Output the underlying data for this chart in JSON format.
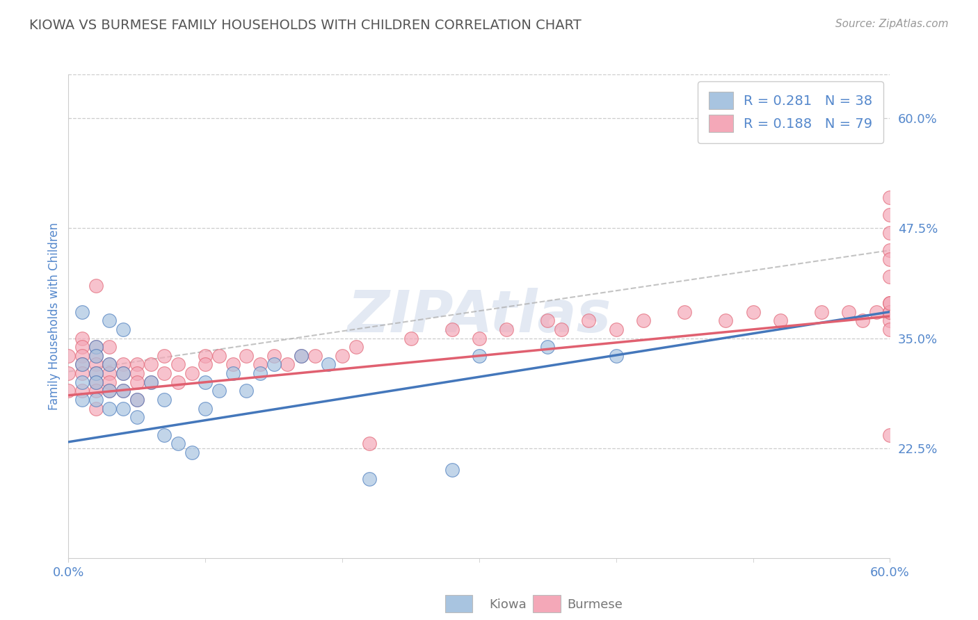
{
  "title": "KIOWA VS BURMESE FAMILY HOUSEHOLDS WITH CHILDREN CORRELATION CHART",
  "source": "Source: ZipAtlas.com",
  "ylabel": "Family Households with Children",
  "x_legend_kiowa": "Kiowa",
  "x_legend_burmese": "Burmese",
  "kiowa_R": 0.281,
  "kiowa_N": 38,
  "burmese_R": 0.188,
  "burmese_N": 79,
  "xlim": [
    0.0,
    0.6
  ],
  "ylim": [
    0.1,
    0.65
  ],
  "yticks": [
    0.225,
    0.35,
    0.475,
    0.6
  ],
  "ytick_labels": [
    "22.5%",
    "35.0%",
    "47.5%",
    "60.0%"
  ],
  "xtick_labels": [
    "0.0%",
    "60.0%"
  ],
  "grid_color": "#cccccc",
  "background_color": "#ffffff",
  "kiowa_color": "#a8c4e0",
  "burmese_color": "#f4a8b8",
  "kiowa_line_color": "#4477bb",
  "burmese_line_color": "#e06070",
  "title_color": "#555555",
  "axis_label_color": "#5588cc",
  "tick_label_color": "#5588cc",
  "watermark_color": "#dce4f0",
  "legend_text_color": "#5588cc",
  "source_color": "#999999",
  "bottom_legend_color": "#777777",
  "kiowa_scatter_x": [
    0.01,
    0.01,
    0.01,
    0.02,
    0.02,
    0.02,
    0.02,
    0.02,
    0.03,
    0.03,
    0.03,
    0.04,
    0.04,
    0.04,
    0.05,
    0.05,
    0.06,
    0.07,
    0.07,
    0.08,
    0.09,
    0.1,
    0.1,
    0.11,
    0.12,
    0.13,
    0.14,
    0.15,
    0.17,
    0.19,
    0.22,
    0.28,
    0.3,
    0.35,
    0.4,
    0.01,
    0.03,
    0.04
  ],
  "kiowa_scatter_y": [
    0.32,
    0.3,
    0.28,
    0.34,
    0.33,
    0.31,
    0.3,
    0.28,
    0.32,
    0.29,
    0.27,
    0.31,
    0.29,
    0.27,
    0.28,
    0.26,
    0.3,
    0.28,
    0.24,
    0.23,
    0.22,
    0.3,
    0.27,
    0.29,
    0.31,
    0.29,
    0.31,
    0.32,
    0.33,
    0.32,
    0.19,
    0.2,
    0.33,
    0.34,
    0.33,
    0.38,
    0.37,
    0.36
  ],
  "burmese_scatter_x": [
    0.0,
    0.0,
    0.0,
    0.01,
    0.01,
    0.01,
    0.01,
    0.01,
    0.01,
    0.02,
    0.02,
    0.02,
    0.02,
    0.02,
    0.02,
    0.02,
    0.02,
    0.03,
    0.03,
    0.03,
    0.03,
    0.03,
    0.04,
    0.04,
    0.04,
    0.05,
    0.05,
    0.05,
    0.05,
    0.06,
    0.06,
    0.07,
    0.07,
    0.08,
    0.08,
    0.09,
    0.1,
    0.1,
    0.11,
    0.12,
    0.13,
    0.14,
    0.15,
    0.16,
    0.17,
    0.18,
    0.2,
    0.21,
    0.22,
    0.25,
    0.28,
    0.3,
    0.32,
    0.35,
    0.36,
    0.38,
    0.4,
    0.42,
    0.45,
    0.48,
    0.5,
    0.52,
    0.55,
    0.57,
    0.58,
    0.59,
    0.6,
    0.6,
    0.6,
    0.6,
    0.6,
    0.6,
    0.6,
    0.6,
    0.6,
    0.6,
    0.6,
    0.6,
    0.6
  ],
  "burmese_scatter_y": [
    0.33,
    0.31,
    0.29,
    0.35,
    0.34,
    0.33,
    0.32,
    0.31,
    0.29,
    0.41,
    0.34,
    0.33,
    0.32,
    0.31,
    0.3,
    0.29,
    0.27,
    0.34,
    0.32,
    0.31,
    0.3,
    0.29,
    0.32,
    0.31,
    0.29,
    0.32,
    0.31,
    0.3,
    0.28,
    0.32,
    0.3,
    0.33,
    0.31,
    0.32,
    0.3,
    0.31,
    0.33,
    0.32,
    0.33,
    0.32,
    0.33,
    0.32,
    0.33,
    0.32,
    0.33,
    0.33,
    0.33,
    0.34,
    0.23,
    0.35,
    0.36,
    0.35,
    0.36,
    0.37,
    0.36,
    0.37,
    0.36,
    0.37,
    0.38,
    0.37,
    0.38,
    0.37,
    0.38,
    0.38,
    0.37,
    0.38,
    0.39,
    0.45,
    0.47,
    0.42,
    0.37,
    0.38,
    0.49,
    0.51,
    0.24,
    0.44,
    0.36,
    0.38,
    0.39
  ],
  "kiowa_trend": [
    0.0,
    0.232,
    0.6,
    0.38
  ],
  "burmese_trend": [
    0.0,
    0.285,
    0.6,
    0.375
  ]
}
